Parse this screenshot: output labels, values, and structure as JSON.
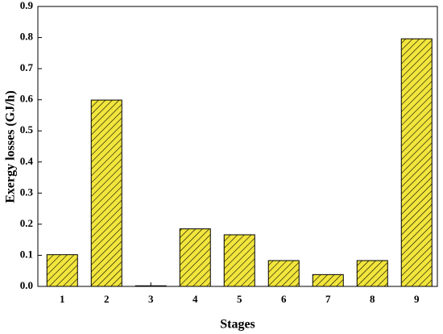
{
  "chart_data": {
    "type": "bar",
    "x_label": "Stages",
    "y_label": "Exergy losses (GJ/h)",
    "categories": [
      "1",
      "2",
      "3",
      "4",
      "5",
      "6",
      "7",
      "8",
      "9"
    ],
    "values": [
      0.102,
      0.599,
      0.002,
      0.185,
      0.166,
      0.083,
      0.038,
      0.083,
      0.796
    ],
    "color": "#f2e53c",
    "ylim": [
      0,
      0.9
    ],
    "yticks": [
      {
        "value": 0,
        "label": "0.0"
      },
      0.1,
      0.2,
      0.3,
      0.4,
      0.5,
      0.6,
      0.7,
      0.8,
      0.9
    ],
    "hatch": true
  }
}
